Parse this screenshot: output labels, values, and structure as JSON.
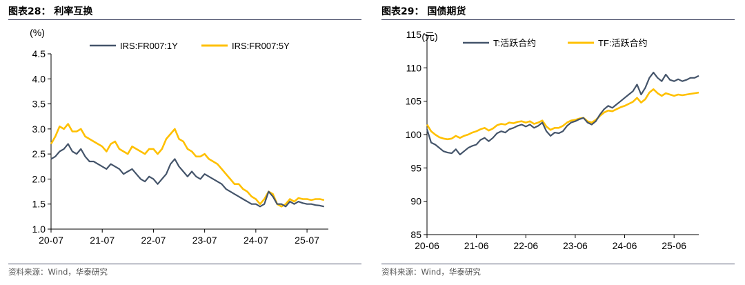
{
  "colors": {
    "navy": "#44546a",
    "gold": "#ffc000",
    "rule": "#4a4f6a"
  },
  "charts": [
    {
      "title": "图表28：  利率互换",
      "source": "资料来源：Wind，华泰研究",
      "chart_data": {
        "type": "line",
        "ylabel": "(%)",
        "ylim": [
          1.0,
          4.5
        ],
        "yticks": [
          4.5,
          4.0,
          3.5,
          3.0,
          2.5,
          2.0,
          1.5,
          1.0
        ],
        "ytick_labels": [
          "4.5",
          "4.0",
          "3.5",
          "3.0",
          "2.5",
          "2.0",
          "1.5",
          "1.0"
        ],
        "xlim": [
          "2020-07",
          "2025-12"
        ],
        "xticks": [
          "2020-07",
          "2021-07",
          "2022-07",
          "2023-07",
          "2024-07",
          "2025-07"
        ],
        "xtick_labels": [
          "20-07",
          "21-07",
          "22-07",
          "23-07",
          "24-07",
          "25-07"
        ],
        "legend_position": "top-center",
        "grid": false,
        "series": [
          {
            "name": "IRS:FR007:1Y",
            "color": "#44546a",
            "x": [
              "2020-07",
              "2020-08",
              "2020-09",
              "2020-10",
              "2020-11",
              "2020-12",
              "2021-01",
              "2021-02",
              "2021-03",
              "2021-04",
              "2021-05",
              "2021-06",
              "2021-07",
              "2021-08",
              "2021-09",
              "2021-10",
              "2021-11",
              "2021-12",
              "2022-01",
              "2022-02",
              "2022-03",
              "2022-04",
              "2022-05",
              "2022-06",
              "2022-07",
              "2022-08",
              "2022-09",
              "2022-10",
              "2022-11",
              "2022-12",
              "2023-01",
              "2023-02",
              "2023-03",
              "2023-04",
              "2023-05",
              "2023-06",
              "2023-07",
              "2023-08",
              "2023-09",
              "2023-10",
              "2023-11",
              "2023-12",
              "2024-01",
              "2024-02",
              "2024-03",
              "2024-04",
              "2024-05",
              "2024-06",
              "2024-07",
              "2024-08",
              "2024-09",
              "2024-10",
              "2024-11",
              "2024-12",
              "2025-01",
              "2025-02",
              "2025-03",
              "2025-04",
              "2025-05",
              "2025-06",
              "2025-07",
              "2025-08",
              "2025-09",
              "2025-10",
              "2025-11"
            ],
            "y": [
              2.4,
              2.45,
              2.55,
              2.6,
              2.7,
              2.55,
              2.5,
              2.6,
              2.45,
              2.35,
              2.35,
              2.3,
              2.25,
              2.2,
              2.3,
              2.25,
              2.2,
              2.1,
              2.15,
              2.2,
              2.1,
              2.0,
              1.95,
              2.05,
              2.0,
              1.9,
              2.0,
              2.1,
              2.3,
              2.4,
              2.25,
              2.15,
              2.05,
              2.15,
              2.05,
              2.0,
              2.1,
              2.05,
              2.0,
              1.95,
              1.9,
              1.8,
              1.75,
              1.7,
              1.65,
              1.6,
              1.55,
              1.5,
              1.5,
              1.45,
              1.5,
              1.75,
              1.65,
              1.5,
              1.5,
              1.45,
              1.55,
              1.5,
              1.55,
              1.52,
              1.5,
              1.5,
              1.48,
              1.47,
              1.45
            ]
          },
          {
            "name": "IRS:FR007:5Y",
            "color": "#ffc000",
            "x": [
              "2020-07",
              "2020-08",
              "2020-09",
              "2020-10",
              "2020-11",
              "2020-12",
              "2021-01",
              "2021-02",
              "2021-03",
              "2021-04",
              "2021-05",
              "2021-06",
              "2021-07",
              "2021-08",
              "2021-09",
              "2021-10",
              "2021-11",
              "2021-12",
              "2022-01",
              "2022-02",
              "2022-03",
              "2022-04",
              "2022-05",
              "2022-06",
              "2022-07",
              "2022-08",
              "2022-09",
              "2022-10",
              "2022-11",
              "2022-12",
              "2023-01",
              "2023-02",
              "2023-03",
              "2023-04",
              "2023-05",
              "2023-06",
              "2023-07",
              "2023-08",
              "2023-09",
              "2023-10",
              "2023-11",
              "2023-12",
              "2024-01",
              "2024-02",
              "2024-03",
              "2024-04",
              "2024-05",
              "2024-06",
              "2024-07",
              "2024-08",
              "2024-09",
              "2024-10",
              "2024-11",
              "2024-12",
              "2025-01",
              "2025-02",
              "2025-03",
              "2025-04",
              "2025-05",
              "2025-06",
              "2025-07",
              "2025-08",
              "2025-09",
              "2025-10",
              "2025-11"
            ],
            "y": [
              2.7,
              2.85,
              3.05,
              3.0,
              3.1,
              2.95,
              2.95,
              3.0,
              2.85,
              2.8,
              2.75,
              2.7,
              2.65,
              2.55,
              2.7,
              2.75,
              2.6,
              2.55,
              2.5,
              2.65,
              2.6,
              2.55,
              2.5,
              2.6,
              2.6,
              2.5,
              2.6,
              2.8,
              2.9,
              3.0,
              2.8,
              2.75,
              2.6,
              2.55,
              2.45,
              2.45,
              2.5,
              2.4,
              2.35,
              2.3,
              2.2,
              2.1,
              2.0,
              1.9,
              1.9,
              1.8,
              1.75,
              1.65,
              1.6,
              1.5,
              1.6,
              1.75,
              1.7,
              1.5,
              1.45,
              1.5,
              1.6,
              1.55,
              1.62,
              1.6,
              1.6,
              1.58,
              1.6,
              1.6,
              1.58
            ]
          }
        ]
      }
    },
    {
      "title": "图表29：  国债期货",
      "source": "资料来源：Wind，华泰研究",
      "chart_data": {
        "type": "line",
        "ylabel": "(元)",
        "ylim": [
          85,
          115
        ],
        "yticks": [
          115,
          110,
          105,
          100,
          95,
          90,
          85
        ],
        "ytick_labels": [
          "115",
          "110",
          "105",
          "100",
          "95",
          "90",
          "85"
        ],
        "xlim": [
          "2020-06",
          "2025-12"
        ],
        "xticks": [
          "2020-06",
          "2021-06",
          "2022-06",
          "2023-06",
          "2024-06",
          "2025-06"
        ],
        "xtick_labels": [
          "20-06",
          "21-06",
          "22-06",
          "23-06",
          "24-06",
          "25-06"
        ],
        "legend_position": "top-center",
        "grid": false,
        "series": [
          {
            "name": "T:活跃合约",
            "color": "#44546a",
            "x": [
              "2020-06",
              "2020-07",
              "2020-08",
              "2020-09",
              "2020-10",
              "2020-11",
              "2020-12",
              "2021-01",
              "2021-02",
              "2021-03",
              "2021-04",
              "2021-05",
              "2021-06",
              "2021-07",
              "2021-08",
              "2021-09",
              "2021-10",
              "2021-11",
              "2021-12",
              "2022-01",
              "2022-02",
              "2022-03",
              "2022-04",
              "2022-05",
              "2022-06",
              "2022-07",
              "2022-08",
              "2022-09",
              "2022-10",
              "2022-11",
              "2022-12",
              "2023-01",
              "2023-02",
              "2023-03",
              "2023-04",
              "2023-05",
              "2023-06",
              "2023-07",
              "2023-08",
              "2023-09",
              "2023-10",
              "2023-11",
              "2023-12",
              "2024-01",
              "2024-02",
              "2024-03",
              "2024-04",
              "2024-05",
              "2024-06",
              "2024-07",
              "2024-08",
              "2024-09",
              "2024-10",
              "2024-11",
              "2024-12",
              "2025-01",
              "2025-02",
              "2025-03",
              "2025-04",
              "2025-05",
              "2025-06",
              "2025-07",
              "2025-08",
              "2025-09",
              "2025-10",
              "2025-11",
              "2025-12"
            ],
            "y": [
              100.8,
              98.8,
              98.5,
              98.0,
              97.5,
              97.3,
              97.2,
              97.8,
              97.0,
              97.5,
              98.0,
              98.3,
              98.5,
              99.2,
              99.5,
              99.0,
              99.5,
              100.2,
              100.5,
              100.3,
              100.8,
              101.0,
              101.3,
              101.5,
              101.2,
              101.5,
              101.0,
              101.3,
              101.8,
              100.5,
              99.8,
              100.3,
              100.2,
              100.5,
              101.3,
              101.8,
              102.0,
              102.3,
              102.5,
              101.8,
              101.5,
              102.0,
              103.0,
              103.8,
              104.3,
              104.0,
              104.5,
              105.0,
              105.5,
              106.0,
              106.5,
              107.5,
              106.0,
              107.0,
              108.5,
              109.3,
              108.5,
              108.0,
              109.0,
              108.2,
              108.0,
              108.3,
              108.0,
              108.2,
              108.5,
              108.5,
              108.8
            ]
          },
          {
            "name": "TF:活跃合约",
            "color": "#ffc000",
            "x": [
              "2020-06",
              "2020-07",
              "2020-08",
              "2020-09",
              "2020-10",
              "2020-11",
              "2020-12",
              "2021-01",
              "2021-02",
              "2021-03",
              "2021-04",
              "2021-05",
              "2021-06",
              "2021-07",
              "2021-08",
              "2021-09",
              "2021-10",
              "2021-11",
              "2021-12",
              "2022-01",
              "2022-02",
              "2022-03",
              "2022-04",
              "2022-05",
              "2022-06",
              "2022-07",
              "2022-08",
              "2022-09",
              "2022-10",
              "2022-11",
              "2022-12",
              "2023-01",
              "2023-02",
              "2023-03",
              "2023-04",
              "2023-05",
              "2023-06",
              "2023-07",
              "2023-08",
              "2023-09",
              "2023-10",
              "2023-11",
              "2023-12",
              "2024-01",
              "2024-02",
              "2024-03",
              "2024-04",
              "2024-05",
              "2024-06",
              "2024-07",
              "2024-08",
              "2024-09",
              "2024-10",
              "2024-11",
              "2024-12",
              "2025-01",
              "2025-02",
              "2025-03",
              "2025-04",
              "2025-05",
              "2025-06",
              "2025-07",
              "2025-08",
              "2025-09",
              "2025-10",
              "2025-11",
              "2025-12"
            ],
            "y": [
              101.5,
              100.5,
              100.0,
              99.6,
              99.4,
              99.3,
              99.4,
              99.8,
              99.5,
              99.8,
              100.0,
              100.3,
              100.5,
              100.8,
              101.0,
              100.6,
              100.9,
              101.4,
              101.6,
              101.5,
              101.8,
              101.7,
              101.9,
              102.0,
              101.8,
              102.0,
              101.6,
              101.8,
              102.1,
              101.2,
              100.7,
              101.0,
              101.0,
              101.3,
              101.8,
              102.1,
              102.2,
              102.4,
              102.5,
              102.0,
              101.8,
              102.2,
              102.8,
              103.3,
              103.6,
              103.5,
              103.8,
              104.1,
              104.3,
              104.6,
              104.9,
              105.5,
              104.8,
              105.3,
              106.3,
              106.8,
              106.2,
              105.8,
              106.2,
              106.0,
              105.8,
              106.0,
              105.9,
              106.0,
              106.1,
              106.2,
              106.3
            ]
          }
        ]
      }
    }
  ]
}
